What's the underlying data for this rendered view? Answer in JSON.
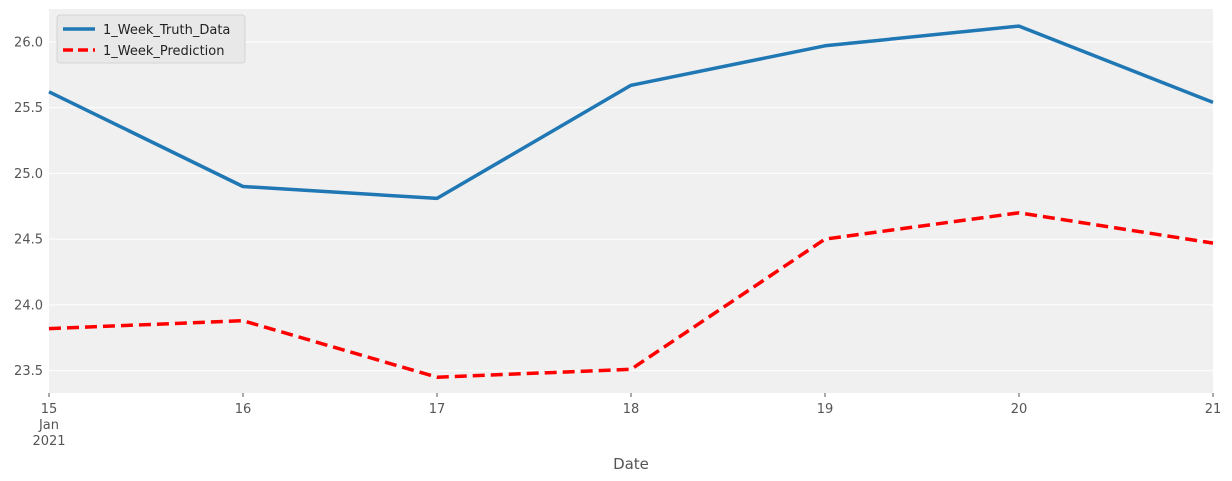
{
  "chart_data": {
    "type": "line",
    "title": "",
    "xlabel": "Date",
    "ylabel": "",
    "x": [
      15,
      16,
      17,
      18,
      19,
      20,
      21
    ],
    "x_tick_labels": [
      "15",
      "16",
      "17",
      "18",
      "19",
      "20",
      "21"
    ],
    "x_tick_sublabel_month": "Jan",
    "x_tick_sublabel_year": "2021",
    "y_ticks": [
      23.5,
      24.0,
      24.5,
      25.0,
      25.5,
      26.0
    ],
    "y_tick_labels": [
      "23.5",
      "24.0",
      "24.5",
      "25.0",
      "25.5",
      "26.0"
    ],
    "xlim": [
      15,
      21
    ],
    "ylim": [
      23.33,
      26.25
    ],
    "grid": true,
    "legend_position": "top-left",
    "series": [
      {
        "name": "1_Week_Truth_Data",
        "color": "#1f77b4",
        "style": "solid",
        "values": [
          25.62,
          24.9,
          24.81,
          25.67,
          25.97,
          26.12,
          25.54
        ]
      },
      {
        "name": "1_Week_Prediction",
        "color": "#ff0000",
        "style": "dashed",
        "values": [
          23.82,
          23.88,
          23.45,
          23.51,
          24.5,
          24.7,
          24.47
        ]
      }
    ]
  }
}
